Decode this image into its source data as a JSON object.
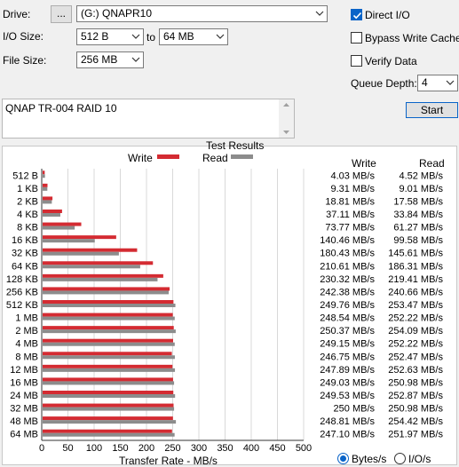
{
  "form": {
    "drive_label": "Drive:",
    "drive_label_u": "D",
    "browse_label": "...",
    "drive_value": "(G:) QNAPR10",
    "io_size_label": "I/O Size:",
    "io_from": "512 B",
    "to_label": "to",
    "io_to": "64 MB",
    "file_size_label": "File Size:",
    "file_size": "256 MB",
    "direct_io": "Direct I/O",
    "bypass_write_cache": "Bypass Write Cache",
    "verify_data": "Verify Data",
    "queue_depth_label": "Queue Depth:",
    "queue_depth": "4",
    "start_label": "Start",
    "notes": "QNAP TR-004 RAID 10"
  },
  "checks": {
    "direct_io": true,
    "bypass_write_cache": false,
    "verify_data": false
  },
  "colors": {
    "write": "#d42b32",
    "read": "#8c8c8c",
    "accent": "#0a64c8"
  },
  "results": {
    "title": "Test Results",
    "legend_write": "Write",
    "legend_read": "Read",
    "col_write": "Write",
    "col_read": "Read",
    "xaxis_label": "Transfer Rate - MB/s",
    "units_bytes": "Bytes/s",
    "units_io": "I/O/s",
    "rows": [
      {
        "size": "512 B",
        "write": "4.03 MB/s",
        "read": "4.52 MB/s"
      },
      {
        "size": "1 KB",
        "write": "9.31 MB/s",
        "read": "9.01 MB/s"
      },
      {
        "size": "2 KB",
        "write": "18.81 MB/s",
        "read": "17.58 MB/s"
      },
      {
        "size": "4 KB",
        "write": "37.11 MB/s",
        "read": "33.84 MB/s"
      },
      {
        "size": "8 KB",
        "write": "73.77 MB/s",
        "read": "61.27 MB/s"
      },
      {
        "size": "16 KB",
        "write": "140.46 MB/s",
        "read": "99.58 MB/s"
      },
      {
        "size": "32 KB",
        "write": "180.43 MB/s",
        "read": "145.61 MB/s"
      },
      {
        "size": "64 KB",
        "write": "210.61 MB/s",
        "read": "186.31 MB/s"
      },
      {
        "size": "128 KB",
        "write": "230.32 MB/s",
        "read": "219.41 MB/s"
      },
      {
        "size": "256 KB",
        "write": "242.38 MB/s",
        "read": "240.66 MB/s"
      },
      {
        "size": "512 KB",
        "write": "249.76 MB/s",
        "read": "253.47 MB/s"
      },
      {
        "size": "1 MB",
        "write": "248.54 MB/s",
        "read": "252.22 MB/s"
      },
      {
        "size": "2 MB",
        "write": "250.37 MB/s",
        "read": "254.09 MB/s"
      },
      {
        "size": "4 MB",
        "write": "249.15 MB/s",
        "read": "252.22 MB/s"
      },
      {
        "size": "8 MB",
        "write": "246.75 MB/s",
        "read": "252.47 MB/s"
      },
      {
        "size": "12 MB",
        "write": "247.89 MB/s",
        "read": "252.63 MB/s"
      },
      {
        "size": "16 MB",
        "write": "249.03 MB/s",
        "read": "250.98 MB/s"
      },
      {
        "size": "24 MB",
        "write": "249.53 MB/s",
        "read": "252.87 MB/s"
      },
      {
        "size": "32 MB",
        "write": "250 MB/s",
        "read": "250.98 MB/s"
      },
      {
        "size": "48 MB",
        "write": "248.81 MB/s",
        "read": "254.42 MB/s"
      },
      {
        "size": "64 MB",
        "write": "247.10 MB/s",
        "read": "251.97 MB/s"
      }
    ]
  },
  "chart_data": {
    "type": "bar",
    "title": "Test Results",
    "xlabel": "Transfer Rate - MB/s",
    "xlim": [
      0,
      500
    ],
    "xticks": [
      "0",
      "50",
      "100",
      "150",
      "200",
      "250",
      "300",
      "350",
      "400",
      "450",
      "500"
    ],
    "categories": [
      "512 B",
      "1 KB",
      "2 KB",
      "4 KB",
      "8 KB",
      "16 KB",
      "32 KB",
      "64 KB",
      "128 KB",
      "256 KB",
      "512 KB",
      "1 MB",
      "2 MB",
      "4 MB",
      "8 MB",
      "12 MB",
      "16 MB",
      "24 MB",
      "32 MB",
      "48 MB",
      "64 MB"
    ],
    "series": [
      {
        "name": "Write",
        "values": [
          4.03,
          9.31,
          18.81,
          37.11,
          73.77,
          140.46,
          180.43,
          210.61,
          230.32,
          242.38,
          249.76,
          248.54,
          250.37,
          249.15,
          246.75,
          247.89,
          249.03,
          249.53,
          250,
          248.81,
          247.1
        ]
      },
      {
        "name": "Read",
        "values": [
          4.52,
          9.01,
          17.58,
          33.84,
          61.27,
          99.58,
          145.61,
          186.31,
          219.41,
          240.66,
          253.47,
          252.22,
          254.09,
          252.22,
          252.47,
          252.63,
          250.98,
          252.87,
          250.98,
          254.42,
          251.97
        ]
      }
    ],
    "grid": true,
    "orientation": "horizontal"
  }
}
